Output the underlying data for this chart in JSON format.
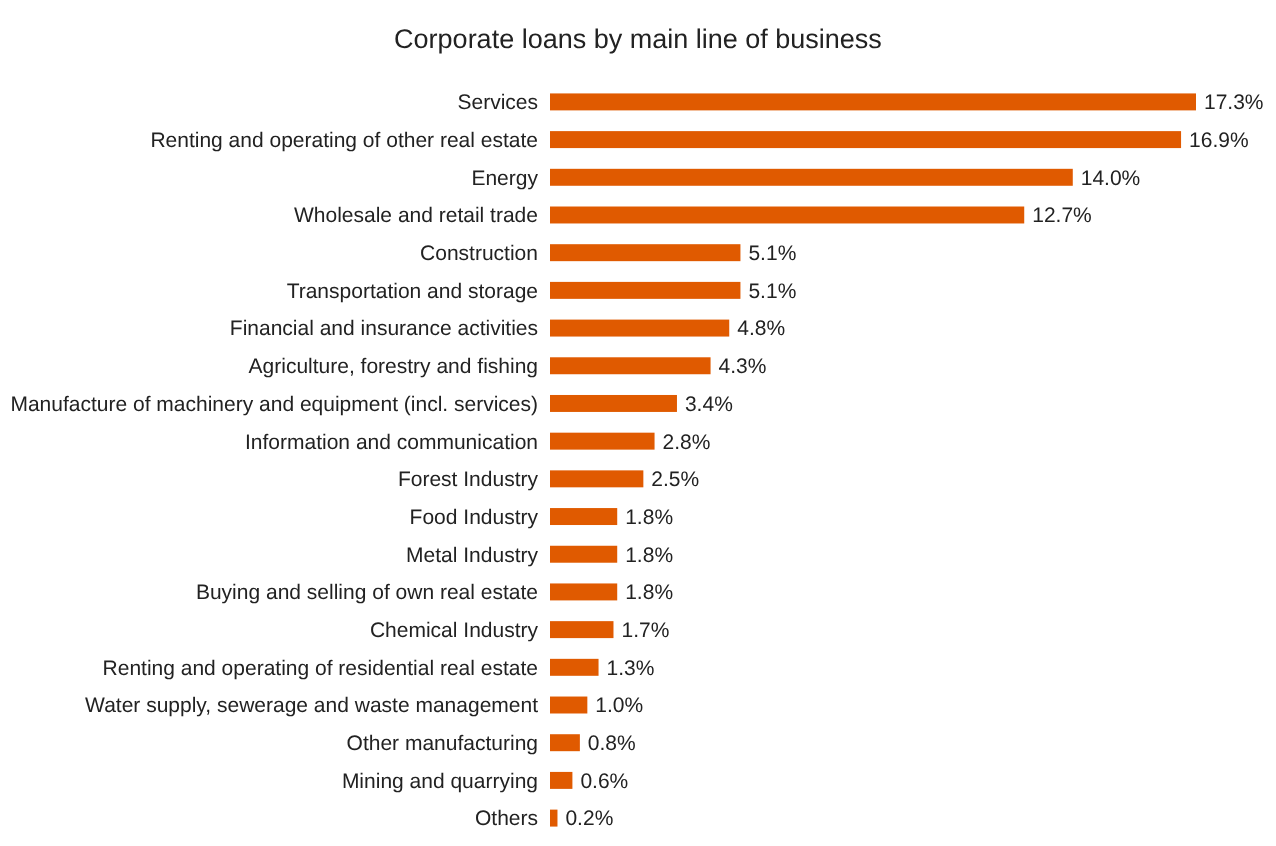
{
  "chart_data": {
    "type": "bar",
    "orientation": "horizontal",
    "title": "Corporate loans by main line of business",
    "categories": [
      "Services",
      "Renting and operating of other real estate",
      "Energy",
      "Wholesale and retail trade",
      "Construction",
      "Transportation and storage",
      "Financial and insurance activities",
      "Agriculture, forestry and fishing",
      "Manufacture of machinery and equipment (incl. services)",
      "Information and communication",
      "Forest Industry",
      "Food Industry",
      "Metal Industry",
      "Buying and selling of own real estate",
      "Chemical Industry",
      "Renting and operating of residential real estate",
      "Water supply, sewerage and waste management",
      "Other manufacturing",
      "Mining and quarrying",
      "Others"
    ],
    "values": [
      17.3,
      16.9,
      14.0,
      12.7,
      5.1,
      5.1,
      4.8,
      4.3,
      3.4,
      2.8,
      2.5,
      1.8,
      1.8,
      1.8,
      1.7,
      1.3,
      1.0,
      0.8,
      0.6,
      0.2
    ],
    "value_labels": [
      "17.3%",
      "16.9%",
      "14.0%",
      "12.7%",
      "5.1%",
      "5.1%",
      "4.8%",
      "4.3%",
      "3.4%",
      "2.8%",
      "2.5%",
      "1.8%",
      "1.8%",
      "1.8%",
      "1.7%",
      "1.3%",
      "1.0%",
      "0.8%",
      "0.6%",
      "0.2%"
    ],
    "color": "#e05a00"
  }
}
